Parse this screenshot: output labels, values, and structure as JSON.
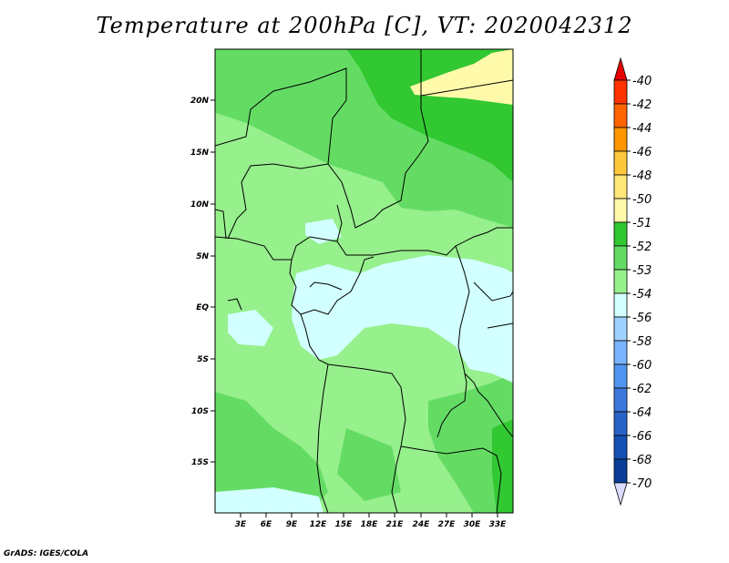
{
  "title": "Temperature at 200hPa [C], VT: 2020042312",
  "footer": "GrADS: IGES/COLA",
  "map": {
    "lat_labels": [
      "20N",
      "15N",
      "10N",
      "5N",
      "EQ",
      "5S",
      "10S",
      "15S"
    ],
    "lon_labels": [
      "3E",
      "6E",
      "9E",
      "12E",
      "15E",
      "18E",
      "21E",
      "24E",
      "27E",
      "30E",
      "33E"
    ]
  },
  "colorbar": {
    "labels": [
      "-40",
      "-42",
      "-44",
      "-46",
      "-48",
      "-50",
      "-51",
      "-52",
      "-53",
      "-54",
      "-56",
      "-58",
      "-60",
      "-62",
      "-64",
      "-66",
      "-68",
      "-70"
    ],
    "colors": [
      "#e60000",
      "#ff3200",
      "#ff6400",
      "#ff9600",
      "#ffc83c",
      "#ffe678",
      "#fffaaa",
      "#32c832",
      "#64dc64",
      "#96f08c",
      "#d2ffff",
      "#a0d2ff",
      "#78b4ff",
      "#5096f0",
      "#3c78dc",
      "#2864c8",
      "#1450b4",
      "#0a3c96",
      "#000a6e"
    ],
    "top_cap_color": "#e60000",
    "bottom_cap_color": "#dcdcff"
  }
}
